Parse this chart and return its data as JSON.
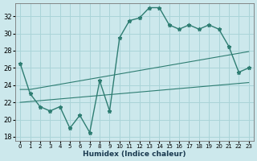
{
  "xlabel": "Humidex (Indice chaleur)",
  "bg_color": "#cce8ec",
  "grid_color": "#aad4d8",
  "line_color": "#2e7d72",
  "xlim": [
    -0.5,
    23.5
  ],
  "ylim": [
    17.5,
    33.5
  ],
  "yticks": [
    18,
    20,
    22,
    24,
    26,
    28,
    30,
    32
  ],
  "xticks": [
    0,
    1,
    2,
    3,
    4,
    5,
    6,
    7,
    8,
    9,
    10,
    11,
    12,
    13,
    14,
    15,
    16,
    17,
    18,
    19,
    20,
    21,
    22,
    23
  ],
  "series_main_x": [
    0,
    1,
    2,
    3,
    4,
    5,
    6,
    7,
    8,
    9,
    10,
    11,
    12,
    13,
    14,
    15,
    16,
    17,
    18,
    19,
    20,
    21,
    22,
    23
  ],
  "series_main_y": [
    26.5,
    23.0,
    21.5,
    21.0,
    21.5,
    19.0,
    20.5,
    18.5,
    24.5,
    21.0,
    29.5,
    31.5,
    31.8,
    33.0,
    33.0,
    31.0,
    30.5,
    31.0,
    30.5,
    31.0,
    30.5,
    28.5,
    25.5,
    26.0
  ],
  "series_upper_x": [
    0,
    1,
    2,
    3,
    4,
    5,
    6,
    7,
    8,
    9,
    10,
    11,
    12,
    13,
    14,
    15,
    16,
    17,
    18,
    19,
    20,
    21,
    22,
    23
  ],
  "series_upper_y": [
    23.5,
    23.5,
    23.7,
    23.9,
    24.1,
    24.3,
    24.5,
    24.7,
    24.9,
    25.1,
    25.3,
    25.5,
    25.7,
    25.9,
    26.1,
    26.3,
    26.5,
    26.7,
    26.9,
    27.1,
    27.3,
    27.5,
    27.7,
    27.9
  ],
  "series_lower_x": [
    0,
    1,
    2,
    3,
    4,
    5,
    6,
    7,
    8,
    9,
    10,
    11,
    12,
    13,
    14,
    15,
    16,
    17,
    18,
    19,
    20,
    21,
    22,
    23
  ],
  "series_lower_y": [
    22.0,
    22.1,
    22.2,
    22.3,
    22.4,
    22.5,
    22.6,
    22.7,
    22.8,
    22.9,
    23.0,
    23.1,
    23.2,
    23.3,
    23.4,
    23.5,
    23.6,
    23.7,
    23.8,
    23.9,
    24.0,
    24.1,
    24.2,
    24.3
  ]
}
